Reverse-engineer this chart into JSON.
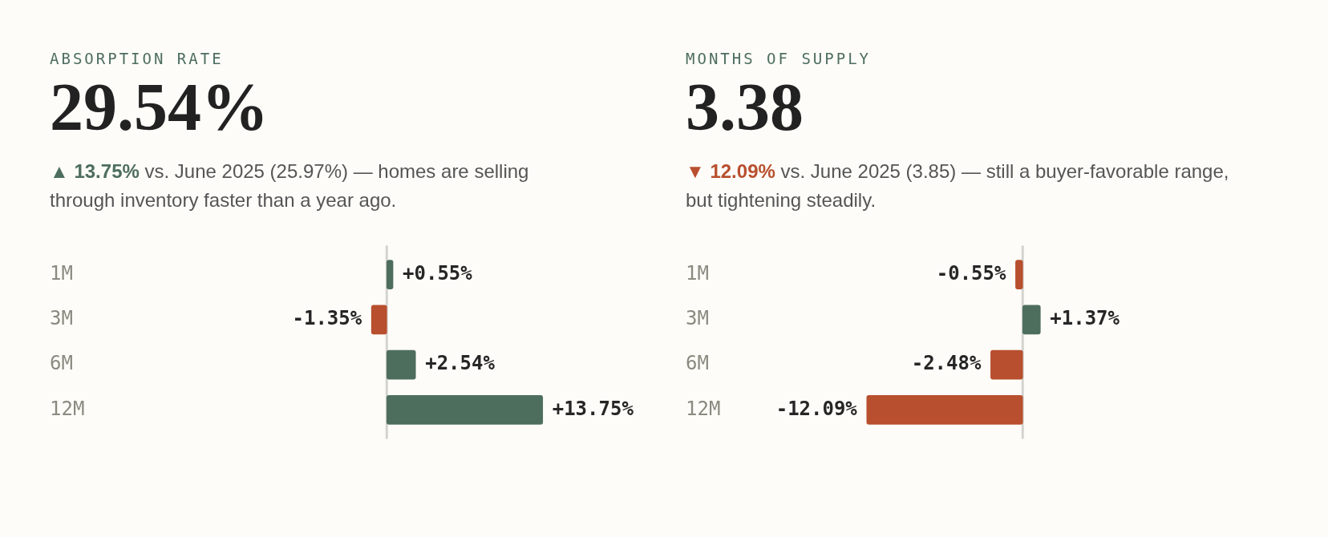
{
  "chart_data": [
    {
      "type": "bar",
      "orientation": "horizontal",
      "title": "ABSORPTION RATE",
      "subtitle": "29.54%",
      "annotations": [
        "▲ 13.75%",
        "vs. June 2025 (25.97%) — homes are selling through inventory faster than a year ago."
      ],
      "categories": [
        "1M",
        "3M",
        "6M",
        "12M"
      ],
      "values": [
        0.55,
        -1.35,
        2.54,
        13.75
      ],
      "colors": [
        "#4e6e5d",
        "#b84f2e",
        "#4e6e5d",
        "#4e6e5d"
      ],
      "value_labels": [
        "+0.55%",
        "-1.35%",
        "+2.54%",
        "+13.75%"
      ],
      "tick_labels": "y",
      "ref_lines": [
        {
          "axis": "x",
          "value": 0,
          "color": "#d4d4cf"
        }
      ],
      "legend": false
    },
    {
      "type": "bar",
      "orientation": "horizontal",
      "title": "MONTHS OF SUPPLY",
      "subtitle": "3.38",
      "annotations": [
        "▼ 12.09%",
        "vs. June 2025 (3.85) — still a buyer-favorable range, but tightening steadily."
      ],
      "categories": [
        "1M",
        "3M",
        "6M",
        "12M"
      ],
      "values": [
        -0.55,
        1.37,
        -2.48,
        -12.09
      ],
      "colors": [
        "#b84f2e",
        "#4e6e5d",
        "#b84f2e",
        "#b84f2e"
      ],
      "value_labels": [
        "-0.55%",
        "+1.37%",
        "-2.48%",
        "-12.09%"
      ],
      "tick_labels": "y",
      "ref_lines": [
        {
          "axis": "x",
          "value": 0,
          "color": "#d4d4cf"
        }
      ],
      "legend": false
    }
  ]
}
